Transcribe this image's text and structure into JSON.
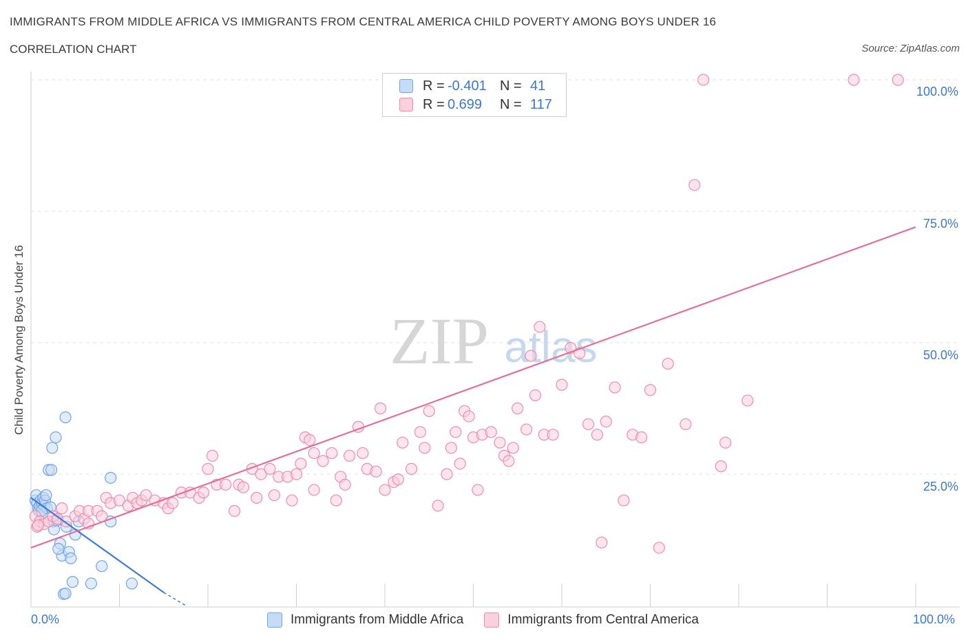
{
  "title": "IMMIGRANTS FROM MIDDLE AFRICA VS IMMIGRANTS FROM CENTRAL AMERICA CHILD POVERTY AMONG BOYS UNDER 16",
  "subtitle": "CORRELATION CHART",
  "source": "Source: ZipAtlas.com",
  "watermark": {
    "zip": "ZIP",
    "atlas": "atlas"
  },
  "legend": {
    "rows": [
      {
        "r_label": "R =",
        "r_value": "-0.401",
        "n_label": "N =",
        "n_value": "41",
        "color": "#6fa3ea",
        "fill": "#c6dbf7"
      },
      {
        "r_label": "R =",
        "r_value": "0.699",
        "n_label": "N =",
        "n_value": "117",
        "color": "#ef8cab",
        "fill": "#f9d0dd"
      }
    ]
  },
  "chart_data": {
    "type": "scatter",
    "title": "IMMIGRANTS FROM MIDDLE AFRICA VS IMMIGRANTS FROM CENTRAL AMERICA CHILD POVERTY AMONG BOYS UNDER 16",
    "xlabel": "",
    "ylabel": "Child Poverty Among Boys Under 16",
    "xlim": [
      0,
      100
    ],
    "ylim": [
      0,
      100
    ],
    "x_tick_labels": [
      "0.0%",
      "100.0%"
    ],
    "y_tick_labels": [
      "25.0%",
      "50.0%",
      "75.0%",
      "100.0%"
    ],
    "y_ticks": [
      25,
      50,
      75,
      100
    ],
    "series": [
      {
        "name": "Immigrants from Middle Africa",
        "color": "#6fa3ea",
        "fill": "#c6dbf7",
        "trend": {
          "x": [
            0,
            15
          ],
          "y": [
            20.5,
            2.5
          ],
          "dashed_to": [
            17.5,
            0
          ]
        },
        "points": [
          [
            0.5,
            20
          ],
          [
            0.7,
            19.5
          ],
          [
            0.6,
            21
          ],
          [
            0.8,
            18.5
          ],
          [
            0.9,
            18
          ],
          [
            1,
            19
          ],
          [
            1.1,
            20
          ],
          [
            1.2,
            19.5
          ],
          [
            1.3,
            17.5
          ],
          [
            1.4,
            20.5
          ],
          [
            1.5,
            19
          ],
          [
            1.6,
            20
          ],
          [
            1.7,
            21
          ],
          [
            1.8,
            18.5
          ],
          [
            2.2,
            18.7
          ],
          [
            2,
            25.8
          ],
          [
            2.3,
            25.8
          ],
          [
            2.4,
            30
          ],
          [
            2.8,
            32
          ],
          [
            3.9,
            35.8
          ],
          [
            2.5,
            16
          ],
          [
            2.6,
            14.5
          ],
          [
            3,
            16.5
          ],
          [
            3.3,
            11.8
          ],
          [
            3.5,
            9.5
          ],
          [
            3.1,
            10.8
          ],
          [
            4,
            15
          ],
          [
            4.3,
            10.2
          ],
          [
            4.5,
            9
          ],
          [
            4.7,
            4.5
          ],
          [
            5,
            13.5
          ],
          [
            5.4,
            16
          ],
          [
            3.7,
            2.2
          ],
          [
            3.9,
            2.3
          ],
          [
            6.8,
            4.2
          ],
          [
            8,
            7.5
          ],
          [
            9.0,
            24.3
          ],
          [
            9.0,
            16
          ],
          [
            11.4,
            4.2
          ],
          [
            1.2,
            18
          ],
          [
            2.9,
            16.2
          ]
        ]
      },
      {
        "name": "Immigrants from Central America",
        "color": "#ef8cab",
        "fill": "#f9d0dd",
        "trend": {
          "x": [
            0,
            100
          ],
          "y": [
            11,
            72
          ]
        },
        "points": [
          [
            0.5,
            17
          ],
          [
            0.7,
            15
          ],
          [
            1,
            16
          ],
          [
            1.5,
            15.5
          ],
          [
            2,
            16
          ],
          [
            2.5,
            17
          ],
          [
            3,
            16.5
          ],
          [
            3.5,
            18.5
          ],
          [
            4,
            16
          ],
          [
            5,
            17
          ],
          [
            5.5,
            18
          ],
          [
            6,
            16.5
          ],
          [
            6.5,
            18
          ],
          [
            7.5,
            18
          ],
          [
            8,
            17
          ],
          [
            8.5,
            20.5
          ],
          [
            9,
            19.5
          ],
          [
            10,
            20
          ],
          [
            11,
            19
          ],
          [
            11.5,
            20.5
          ],
          [
            12,
            19.5
          ],
          [
            12.5,
            20
          ],
          [
            13,
            21
          ],
          [
            14,
            20
          ],
          [
            15,
            19.5
          ],
          [
            15.5,
            18.5
          ],
          [
            16,
            19.5
          ],
          [
            17,
            21.5
          ],
          [
            18,
            21.5
          ],
          [
            19,
            20.5
          ],
          [
            19.5,
            21.5
          ],
          [
            20,
            26
          ],
          [
            20.5,
            28.5
          ],
          [
            21,
            23
          ],
          [
            22,
            23
          ],
          [
            23,
            18
          ],
          [
            23.5,
            23
          ],
          [
            24,
            22.5
          ],
          [
            25,
            26
          ],
          [
            25.5,
            20.5
          ],
          [
            26,
            25
          ],
          [
            27,
            26
          ],
          [
            27.5,
            21
          ],
          [
            28,
            24.5
          ],
          [
            29,
            24.5
          ],
          [
            29.5,
            20
          ],
          [
            30,
            25
          ],
          [
            30.5,
            27
          ],
          [
            31,
            32
          ],
          [
            31.5,
            31.5
          ],
          [
            32,
            29
          ],
          [
            33,
            27.5
          ],
          [
            34,
            29
          ],
          [
            34.5,
            20
          ],
          [
            35,
            24.5
          ],
          [
            35.5,
            23
          ],
          [
            36,
            28.5
          ],
          [
            37,
            34
          ],
          [
            37.5,
            29
          ],
          [
            38,
            26
          ],
          [
            39,
            25.5
          ],
          [
            39.5,
            37.5
          ],
          [
            40,
            22
          ],
          [
            41,
            23.5
          ],
          [
            41.5,
            24
          ],
          [
            42,
            31
          ],
          [
            43,
            26
          ],
          [
            44,
            33
          ],
          [
            44.5,
            30
          ],
          [
            45,
            37
          ],
          [
            46,
            19
          ],
          [
            47,
            25
          ],
          [
            47.5,
            30
          ],
          [
            48,
            33
          ],
          [
            48.5,
            27
          ],
          [
            49,
            37
          ],
          [
            49.5,
            36
          ],
          [
            50,
            32
          ],
          [
            50.5,
            22
          ],
          [
            51,
            32.5
          ],
          [
            52,
            33
          ],
          [
            53,
            31
          ],
          [
            53.5,
            28.5
          ],
          [
            54,
            27.5
          ],
          [
            54.5,
            30
          ],
          [
            55,
            37.5
          ],
          [
            56,
            33.5
          ],
          [
            56.5,
            47.5
          ],
          [
            57,
            40
          ],
          [
            57.5,
            53
          ],
          [
            58,
            32.5
          ],
          [
            59,
            32.5
          ],
          [
            60,
            42
          ],
          [
            61,
            49
          ],
          [
            62,
            48
          ],
          [
            63,
            34.5
          ],
          [
            64,
            32.5
          ],
          [
            64.5,
            12
          ],
          [
            65,
            35
          ],
          [
            66,
            41.5
          ],
          [
            67,
            20
          ],
          [
            68,
            32.5
          ],
          [
            69,
            32
          ],
          [
            70,
            41
          ],
          [
            71,
            11
          ],
          [
            72,
            46
          ],
          [
            74,
            34.5
          ],
          [
            75,
            80
          ],
          [
            76,
            100
          ],
          [
            78,
            26.5
          ],
          [
            78.5,
            31
          ],
          [
            81,
            39
          ],
          [
            93,
            100
          ],
          [
            98,
            100
          ],
          [
            0.8,
            15.3
          ],
          [
            6.5,
            15.6
          ],
          [
            32,
            22
          ]
        ]
      }
    ]
  },
  "bottom_legend": {
    "items": [
      {
        "label": "Immigrants from Middle Africa",
        "color": "#6fa3ea",
        "fill": "#c6dbf7"
      },
      {
        "label": "Immigrants from Central America",
        "color": "#ef8cab",
        "fill": "#f9d0dd"
      }
    ]
  }
}
